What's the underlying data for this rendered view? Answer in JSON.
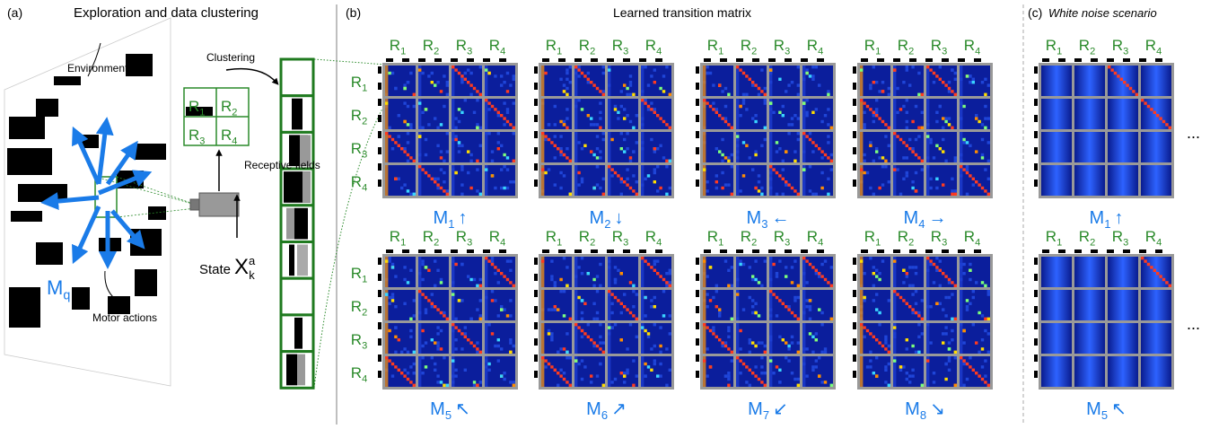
{
  "panel_a": {
    "label": "(a)",
    "title": "Exploration and data clustering",
    "environment": "Environment",
    "clustering": "Clustering",
    "receptive_fields": "Receptive fields",
    "state": {
      "text": "State",
      "base": "X",
      "sub": "k",
      "sup": "a"
    },
    "motor": {
      "base": "M",
      "sub": "q"
    },
    "motor_actions": "Motor actions"
  },
  "regions": [
    {
      "base": "R",
      "sub": "1"
    },
    {
      "base": "R",
      "sub": "2"
    },
    {
      "base": "R",
      "sub": "3"
    },
    {
      "base": "R",
      "sub": "4"
    }
  ],
  "panel_b": {
    "label": "(b)",
    "title": "Learned transition matrix",
    "matrices": [
      {
        "base": "M",
        "sub": "1",
        "arrow": "↑"
      },
      {
        "base": "M",
        "sub": "2",
        "arrow": "↓"
      },
      {
        "base": "M",
        "sub": "3",
        "arrow": "←"
      },
      {
        "base": "M",
        "sub": "4",
        "arrow": "→"
      },
      {
        "base": "M",
        "sub": "5",
        "arrow": "↖"
      },
      {
        "base": "M",
        "sub": "6",
        "arrow": "↗"
      },
      {
        "base": "M",
        "sub": "7",
        "arrow": "↙"
      },
      {
        "base": "M",
        "sub": "8",
        "arrow": "↘"
      }
    ]
  },
  "panel_c": {
    "label": "(c)",
    "title": "White noise scenario",
    "matrices": [
      {
        "base": "M",
        "sub": "1",
        "arrow": "↑"
      },
      {
        "base": "M",
        "sub": "5",
        "arrow": "↖"
      }
    ],
    "ellipsis": "..."
  }
}
